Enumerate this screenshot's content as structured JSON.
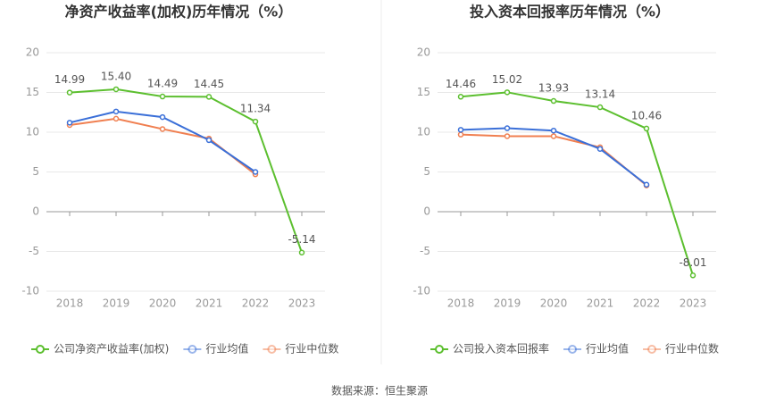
{
  "chart_data": [
    {
      "type": "line",
      "title": "净资产收益率(加权)历年情况（%）",
      "categories": [
        "2018",
        "2019",
        "2020",
        "2021",
        "2022",
        "2023"
      ],
      "series": [
        {
          "name": "公司净资产收益率(加权)",
          "color": "#5cbf2f",
          "values": [
            14.99,
            15.4,
            14.49,
            14.45,
            11.34,
            -5.14
          ],
          "value_labels": [
            "14.99",
            "15.40",
            "14.49",
            "14.45",
            "11.34",
            "-5.14"
          ]
        },
        {
          "name": "行业均值",
          "color": "#3a6fd8",
          "values": [
            11.2,
            12.6,
            11.9,
            9.0,
            5.0,
            null
          ]
        },
        {
          "name": "行业中位数",
          "color": "#f07f50",
          "values": [
            10.9,
            11.7,
            10.4,
            9.2,
            4.7,
            null
          ]
        }
      ],
      "ylim": [
        -10,
        20
      ],
      "yticks": [
        -10,
        -5,
        0,
        5,
        10,
        15,
        20
      ],
      "grid": true
    },
    {
      "type": "line",
      "title": "投入资本回报率历年情况（%）",
      "categories": [
        "2018",
        "2019",
        "2020",
        "2021",
        "2022",
        "2023"
      ],
      "series": [
        {
          "name": "公司投入资本回报率",
          "color": "#5cbf2f",
          "values": [
            14.46,
            15.02,
            13.93,
            13.14,
            10.46,
            -8.01
          ],
          "value_labels": [
            "14.46",
            "15.02",
            "13.93",
            "13.14",
            "10.46",
            "-8.01"
          ]
        },
        {
          "name": "行业均值",
          "color": "#3a6fd8",
          "values": [
            10.3,
            10.5,
            10.2,
            7.9,
            3.4,
            null
          ]
        },
        {
          "name": "行业中位数",
          "color": "#f07f50",
          "values": [
            9.7,
            9.5,
            9.5,
            8.1,
            3.3,
            null
          ]
        }
      ],
      "ylim": [
        -10,
        20
      ],
      "yticks": [
        -10,
        -5,
        0,
        5,
        10,
        15,
        20
      ],
      "grid": true
    }
  ],
  "source": "数据来源：恒生聚源"
}
